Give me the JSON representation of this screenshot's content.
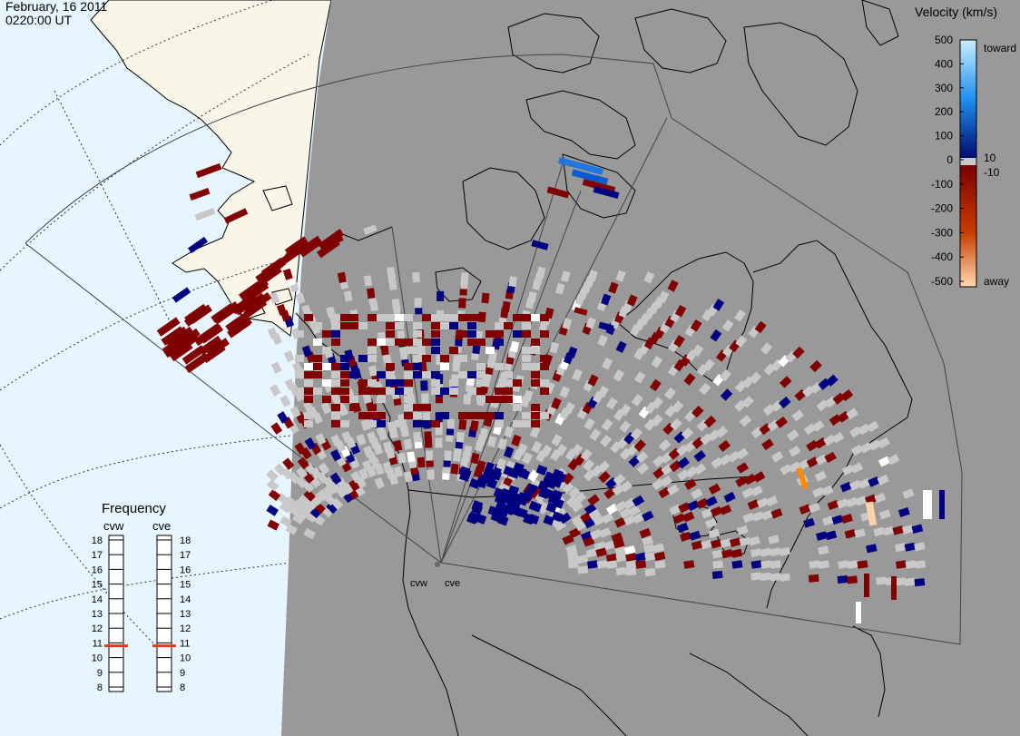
{
  "header": {
    "date": "February, 16 2011",
    "time": "0220:00 UT"
  },
  "colorbar": {
    "title": "Velocity (km/s)",
    "toward_label": "toward",
    "away_label": "away",
    "ticks_left": [
      "500",
      "400",
      "300",
      "200",
      "100",
      "0",
      "-100",
      "-200",
      "-300",
      "-400",
      "-500"
    ],
    "ticks_right_top": "10",
    "ticks_right_bottom": "-10",
    "colors": {
      "toward_500": "#c8eefd",
      "toward_300": "#1e90f0",
      "toward_100": "#0a2fa0",
      "near_zero_pos": "#000b70",
      "ground_scatter": "#c8c8c8",
      "near_zero_neg": "#7a0000",
      "away_200": "#c83c00",
      "away_400": "#ff8a00",
      "away_500": "#ffd9b0"
    }
  },
  "radars": [
    {
      "name": "cvw",
      "frequency_mhz": 10.8
    },
    {
      "name": "cve",
      "frequency_mhz": 10.8
    }
  ],
  "frequency_panel": {
    "title": "Frequency",
    "scale_min": 8,
    "scale_max": 18,
    "tick_labels": [
      "18",
      "17",
      "16",
      "15",
      "14",
      "13",
      "12",
      "11",
      "10",
      "9",
      "8"
    ]
  },
  "map_colors": {
    "ocean": "#e6f5ff",
    "land": "#f8f6e8",
    "night_shade": "#999999",
    "ground_scatter": "#c8c8c8",
    "negative_velocity": "#800000",
    "positive_velocity": "#000080"
  }
}
